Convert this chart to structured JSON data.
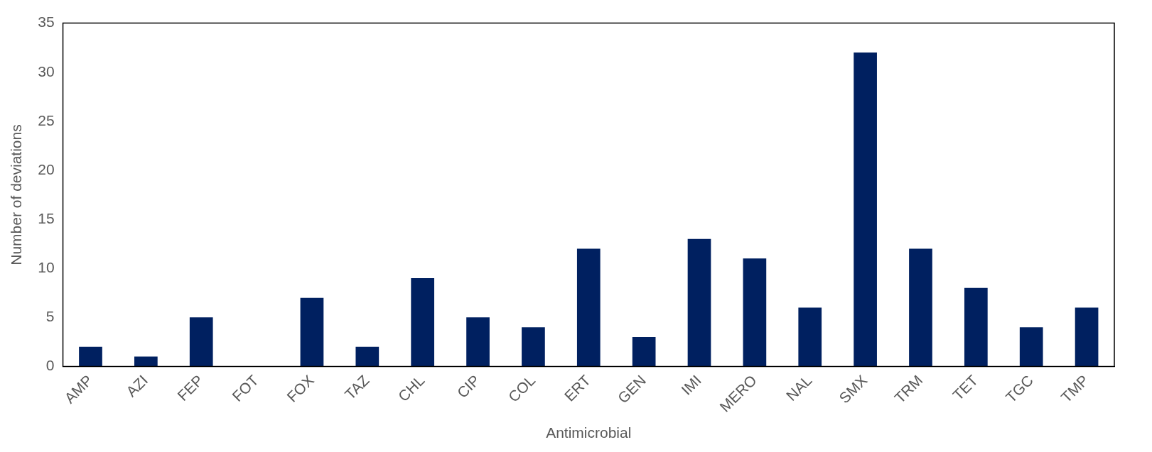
{
  "chart_data": {
    "type": "bar",
    "xlabel": "Antimicrobial",
    "ylabel": "Number of deviations",
    "categories": [
      "AMP",
      "AZI",
      "FEP",
      "FOT",
      "FOX",
      "TAZ",
      "CHL",
      "CIP",
      "COL",
      "ERT",
      "GEN",
      "IMI",
      "MERO",
      "NAL",
      "SMX",
      "TRM",
      "TET",
      "TGC",
      "TMP"
    ],
    "values": [
      2,
      1,
      5,
      0,
      7,
      2,
      9,
      5,
      4,
      12,
      3,
      13,
      11,
      6,
      32,
      12,
      8,
      4,
      6
    ],
    "color": "#002060",
    "ylim": [
      0,
      35
    ],
    "yticks": [
      0,
      5,
      10,
      15,
      20,
      25,
      30,
      35
    ],
    "grid": false,
    "legend": false
  }
}
